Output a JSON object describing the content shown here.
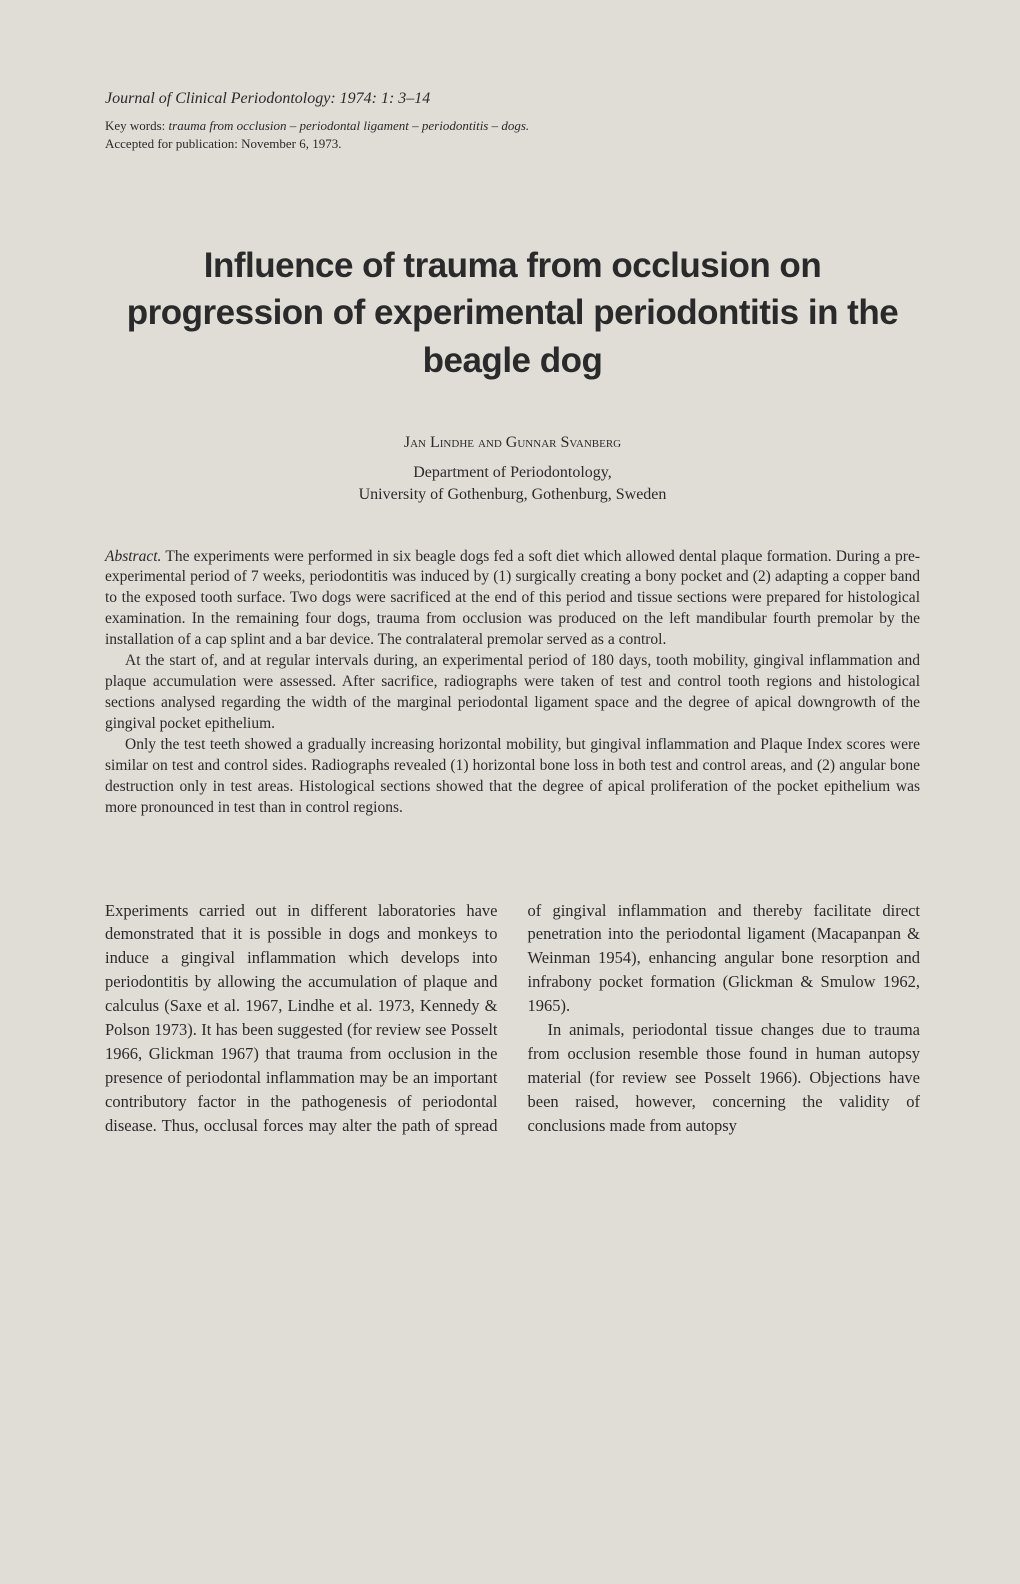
{
  "header": {
    "journal_citation": "Journal of Clinical Periodontology: 1974: 1: 3–14",
    "keywords_label": "Key words: ",
    "keywords_terms": "trauma from occlusion – periodontal ligament – periodontitis – dogs.",
    "accepted": "Accepted for publication: November 6, 1973."
  },
  "title": "Influence of trauma from occlusion on progression of experimental periodontitis in the beagle dog",
  "authors": "Jan Lindhe and Gunnar Svanberg",
  "affiliation_line1": "Department of Periodontology,",
  "affiliation_line2": "University of Gothenburg, Gothenburg, Sweden",
  "abstract": {
    "label": "Abstract.",
    "p1": " The experiments were performed in six beagle dogs fed a soft diet which allowed dental plaque formation. During a pre-experimental period of 7 weeks, periodontitis was induced by (1) surgically creating a bony pocket and (2) adapting a copper band to the exposed tooth surface. Two dogs were sacrificed at the end of this period and tissue sections were prepared for histological examination. In the remaining four dogs, trauma from occlusion was produced on the left mandibular fourth premolar by the installation of a cap splint and a bar device. The contralateral premolar served as a control.",
    "p2": "At the start of, and at regular intervals during, an experimental period of 180 days, tooth mobility, gingival inflammation and plaque accumulation were assessed. After sacrifice, radiographs were taken of test and control tooth regions and histological sections analysed regarding the width of the marginal periodontal ligament space and the degree of apical downgrowth of the gingival pocket epithelium.",
    "p3": "Only the test teeth showed a gradually increasing horizontal mobility, but gingival inflammation and Plaque Index scores were similar on test and control sides. Radiographs revealed (1) horizontal bone loss in both test and control areas, and (2) angular bone destruction only in test areas. Histological sections showed that the degree of apical proliferation of the pocket epithelium was more pronounced in test than in control regions."
  },
  "body": {
    "p1": "Experiments carried out in different laboratories have demonstrated that it is possible in dogs and monkeys to induce a gingival inflammation which develops into periodontitis by allowing the accumulation of plaque and calculus (Saxe et al. 1967, Lindhe et al. 1973, Kennedy & Polson 1973). It has been suggested (for review see Posselt 1966, Glickman 1967) that trauma from occlusion in the presence of periodontal inflammation may be an important contributory factor in the pathogenesis of periodontal disease. Thus, occlusal forces may alter the path of spread of gingival inflammation and thereby facilitate direct penetration into the periodontal ligament (Macapanpan & Weinman 1954), enhancing angular bone resorption and infrabony pocket formation (Glickman & Smulow 1962, 1965).",
    "p2": "In animals, periodontal tissue changes due to trauma from occlusion resemble those found in human autopsy material (for review see Posselt 1966). Objections have been raised, however, concerning the validity of conclusions made from autopsy"
  },
  "styling": {
    "page_background": "#e0ddd6",
    "text_color": "#2a2a2a",
    "title_font": "Arial, Helvetica, sans-serif",
    "body_font": "Georgia, Times New Roman, serif",
    "title_fontsize": 35,
    "body_fontsize": 16.5,
    "abstract_fontsize": 15.5,
    "header_fontsize": 16,
    "keywords_fontsize": 13
  }
}
